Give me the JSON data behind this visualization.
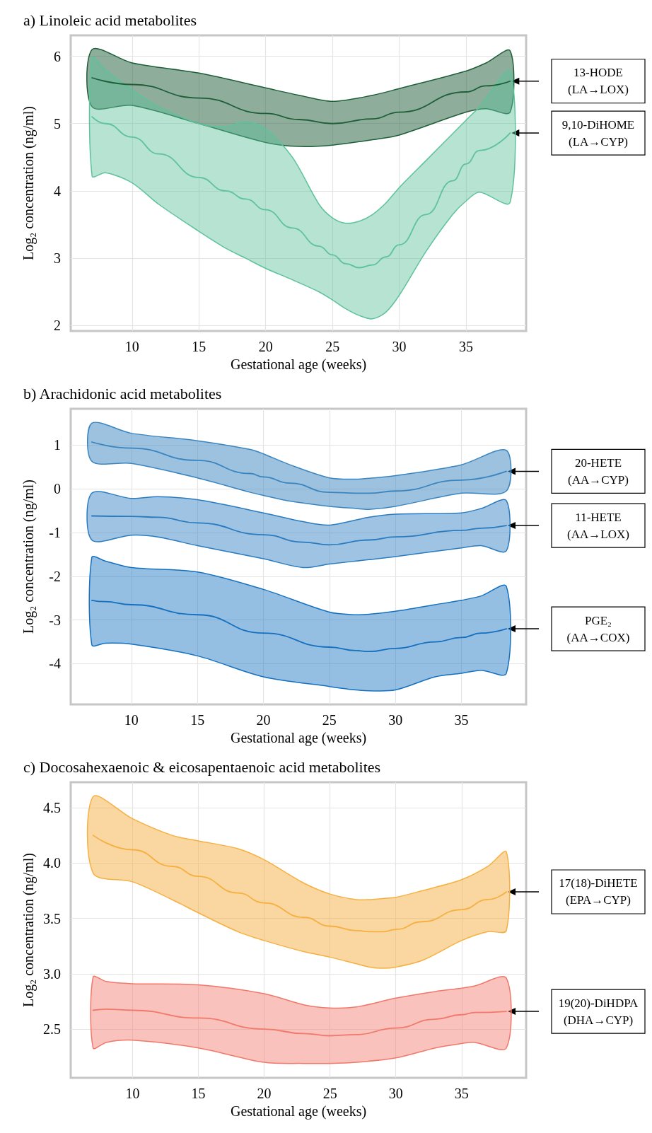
{
  "chart_data": [
    {
      "type": "line",
      "title": "a) Linoleic acid metabolites",
      "xlabel": "Gestational age (weeks)",
      "ylabel": "Log₂ concentration (ng/ml)",
      "xlim": [
        5.4,
        39.5
      ],
      "ylim": [
        1.92,
        6.31
      ],
      "xticks": [
        10,
        15,
        20,
        25,
        30,
        35
      ],
      "yticks": [
        2,
        3,
        4,
        5,
        6
      ],
      "grid": true,
      "series": [
        {
          "name": "13-HODE (LA→LOX)",
          "color": "#1e5e38",
          "x": [
            7,
            10,
            15,
            20,
            22.5,
            25,
            28,
            30,
            35,
            36.5,
            38.3
          ],
          "values": [
            5.68,
            5.58,
            5.38,
            5.15,
            5.06,
            5.0,
            5.07,
            5.17,
            5.47,
            5.56,
            5.63
          ],
          "upper": [
            6.1,
            5.9,
            5.75,
            5.53,
            5.42,
            5.33,
            5.42,
            5.52,
            5.78,
            5.9,
            6.08
          ],
          "lower": [
            5.25,
            5.27,
            5.0,
            4.72,
            4.66,
            4.68,
            4.76,
            4.83,
            5.17,
            5.22,
            5.17
          ]
        },
        {
          "name": "9,10-DiHOME (LA→CYP)",
          "color": "#5ec29c",
          "x": [
            7,
            8,
            10,
            12,
            15,
            17,
            18.5,
            20,
            22,
            24,
            25,
            26,
            27,
            28,
            29,
            30,
            32,
            34,
            35,
            36,
            38.3
          ],
          "values": [
            5.1,
            5.0,
            4.8,
            4.55,
            4.2,
            4.0,
            3.88,
            3.72,
            3.45,
            3.18,
            3.05,
            2.92,
            2.86,
            2.9,
            3.02,
            3.2,
            3.65,
            4.15,
            4.4,
            4.6,
            4.86
          ],
          "upper": [
            5.98,
            5.8,
            5.5,
            5.25,
            5.0,
            4.95,
            5.03,
            4.92,
            4.5,
            3.8,
            3.6,
            3.52,
            3.55,
            3.65,
            3.82,
            4.05,
            4.45,
            4.85,
            5.05,
            5.25,
            5.78
          ],
          "lower": [
            4.22,
            4.27,
            4.12,
            3.8,
            3.4,
            3.15,
            3.0,
            2.85,
            2.68,
            2.5,
            2.38,
            2.25,
            2.15,
            2.1,
            2.2,
            2.45,
            3.1,
            3.65,
            3.85,
            3.98,
            3.83
          ]
        }
      ]
    },
    {
      "type": "line",
      "title": "b) Arachidonic acid metabolites",
      "xlabel": "Gestational age (weeks)",
      "ylabel": "Log₂ concentration (ng/ml)",
      "xlim": [
        5.4,
        39.9
      ],
      "ylim": [
        -4.93,
        1.83
      ],
      "xticks": [
        10,
        15,
        20,
        25,
        30,
        35
      ],
      "yticks": [
        -4,
        -3,
        -2,
        -1,
        0,
        1
      ],
      "grid": true,
      "series": [
        {
          "name": "20-HETE (AA→CYP)",
          "color": "#3a85c0",
          "x": [
            7,
            10,
            15,
            19,
            20,
            22,
            25,
            27,
            28,
            30,
            35,
            38.4
          ],
          "values": [
            1.07,
            0.93,
            0.65,
            0.35,
            0.27,
            0.13,
            -0.08,
            -0.1,
            -0.1,
            -0.05,
            0.2,
            0.4
          ],
          "upper": [
            1.5,
            1.27,
            1.1,
            0.9,
            0.8,
            0.55,
            0.25,
            0.22,
            0.24,
            0.3,
            0.55,
            0.88
          ],
          "lower": [
            0.63,
            0.58,
            0.25,
            -0.08,
            -0.15,
            -0.28,
            -0.4,
            -0.45,
            -0.47,
            -0.4,
            -0.1,
            -0.05
          ]
        },
        {
          "name": "11-HETE (AA→LOX)",
          "color": "#2a7bbf",
          "x": [
            7,
            10,
            12,
            15,
            20,
            23,
            25,
            28,
            30,
            35,
            36.5,
            38.4
          ],
          "values": [
            -0.62,
            -0.63,
            -0.65,
            -0.78,
            -1.05,
            -1.22,
            -1.28,
            -1.17,
            -1.1,
            -0.95,
            -0.9,
            -0.84
          ],
          "upper": [
            -0.1,
            -0.22,
            -0.18,
            -0.25,
            -0.55,
            -0.75,
            -0.83,
            -0.65,
            -0.58,
            -0.55,
            -0.45,
            -0.27
          ],
          "lower": [
            -1.17,
            -1.06,
            -1.1,
            -1.3,
            -1.6,
            -1.8,
            -1.72,
            -1.62,
            -1.55,
            -1.35,
            -1.3,
            -1.42
          ]
        },
        {
          "name": "PGE₂ (AA→COX)",
          "color": "#1570bf",
          "x": [
            7,
            8,
            10,
            15,
            20,
            25,
            27,
            28,
            30,
            33,
            35,
            36.5,
            38.4
          ],
          "values": [
            -2.55,
            -2.58,
            -2.65,
            -2.88,
            -3.3,
            -3.62,
            -3.7,
            -3.72,
            -3.65,
            -3.5,
            -3.4,
            -3.3,
            -3.2
          ],
          "upper": [
            -1.57,
            -1.65,
            -1.8,
            -1.9,
            -2.3,
            -2.82,
            -2.88,
            -2.87,
            -2.8,
            -2.65,
            -2.55,
            -2.45,
            -2.23
          ],
          "lower": [
            -3.57,
            -3.53,
            -3.55,
            -3.82,
            -4.3,
            -4.52,
            -4.6,
            -4.62,
            -4.6,
            -4.3,
            -4.22,
            -4.15,
            -4.22
          ]
        }
      ]
    },
    {
      "type": "line",
      "title": "c) Docosahexaenoic & eicosapentaenoic acid metabolites",
      "xlabel": "Gestational age (weeks)",
      "ylabel": "Log₂ concentration (ng/ml)",
      "xlim": [
        5.3,
        39.9
      ],
      "ylim": [
        2.06,
        4.73
      ],
      "xticks": [
        10,
        15,
        20,
        25,
        30,
        35
      ],
      "yticks": [
        {
          "value": 2.5,
          "label": "2.5"
        },
        {
          "value": 3,
          "label": "3.0"
        },
        {
          "value": 3.5,
          "label": "3.5"
        },
        {
          "value": 4,
          "label": "4.0"
        },
        {
          "value": 4.5,
          "label": "4.5"
        }
      ],
      "grid": true,
      "series": [
        {
          "name": "17(18)-DiHETE (EPA→CYP)",
          "color": "#f5b041",
          "x": [
            7,
            10,
            13,
            15,
            18,
            20,
            23,
            25,
            27,
            28,
            29,
            30,
            32,
            35,
            37,
            38.4
          ],
          "values": [
            4.25,
            4.12,
            3.97,
            3.88,
            3.73,
            3.64,
            3.51,
            3.43,
            3.39,
            3.38,
            3.38,
            3.4,
            3.47,
            3.58,
            3.67,
            3.74
          ],
          "upper": [
            4.6,
            4.4,
            4.25,
            4.2,
            4.13,
            4.03,
            3.82,
            3.72,
            3.67,
            3.67,
            3.68,
            3.69,
            3.75,
            3.85,
            3.97,
            4.1
          ],
          "lower": [
            3.91,
            3.83,
            3.67,
            3.55,
            3.38,
            3.3,
            3.2,
            3.15,
            3.09,
            3.06,
            3.05,
            3.06,
            3.12,
            3.3,
            3.38,
            3.39
          ]
        },
        {
          "name": "19(20)-DiHDPA (DHA→CYP)",
          "color": "#f1786a",
          "x": [
            7,
            8,
            10,
            15,
            20,
            23,
            25,
            27,
            30,
            33,
            35,
            36,
            38.4
          ],
          "values": [
            2.67,
            2.68,
            2.67,
            2.6,
            2.5,
            2.46,
            2.44,
            2.45,
            2.51,
            2.59,
            2.63,
            2.65,
            2.66
          ],
          "upper": [
            2.97,
            2.93,
            2.91,
            2.9,
            2.82,
            2.72,
            2.69,
            2.7,
            2.78,
            2.84,
            2.87,
            2.89,
            2.96
          ],
          "lower": [
            2.33,
            2.38,
            2.4,
            2.33,
            2.2,
            2.19,
            2.19,
            2.2,
            2.24,
            2.33,
            2.37,
            2.38,
            2.33
          ]
        }
      ]
    }
  ]
}
